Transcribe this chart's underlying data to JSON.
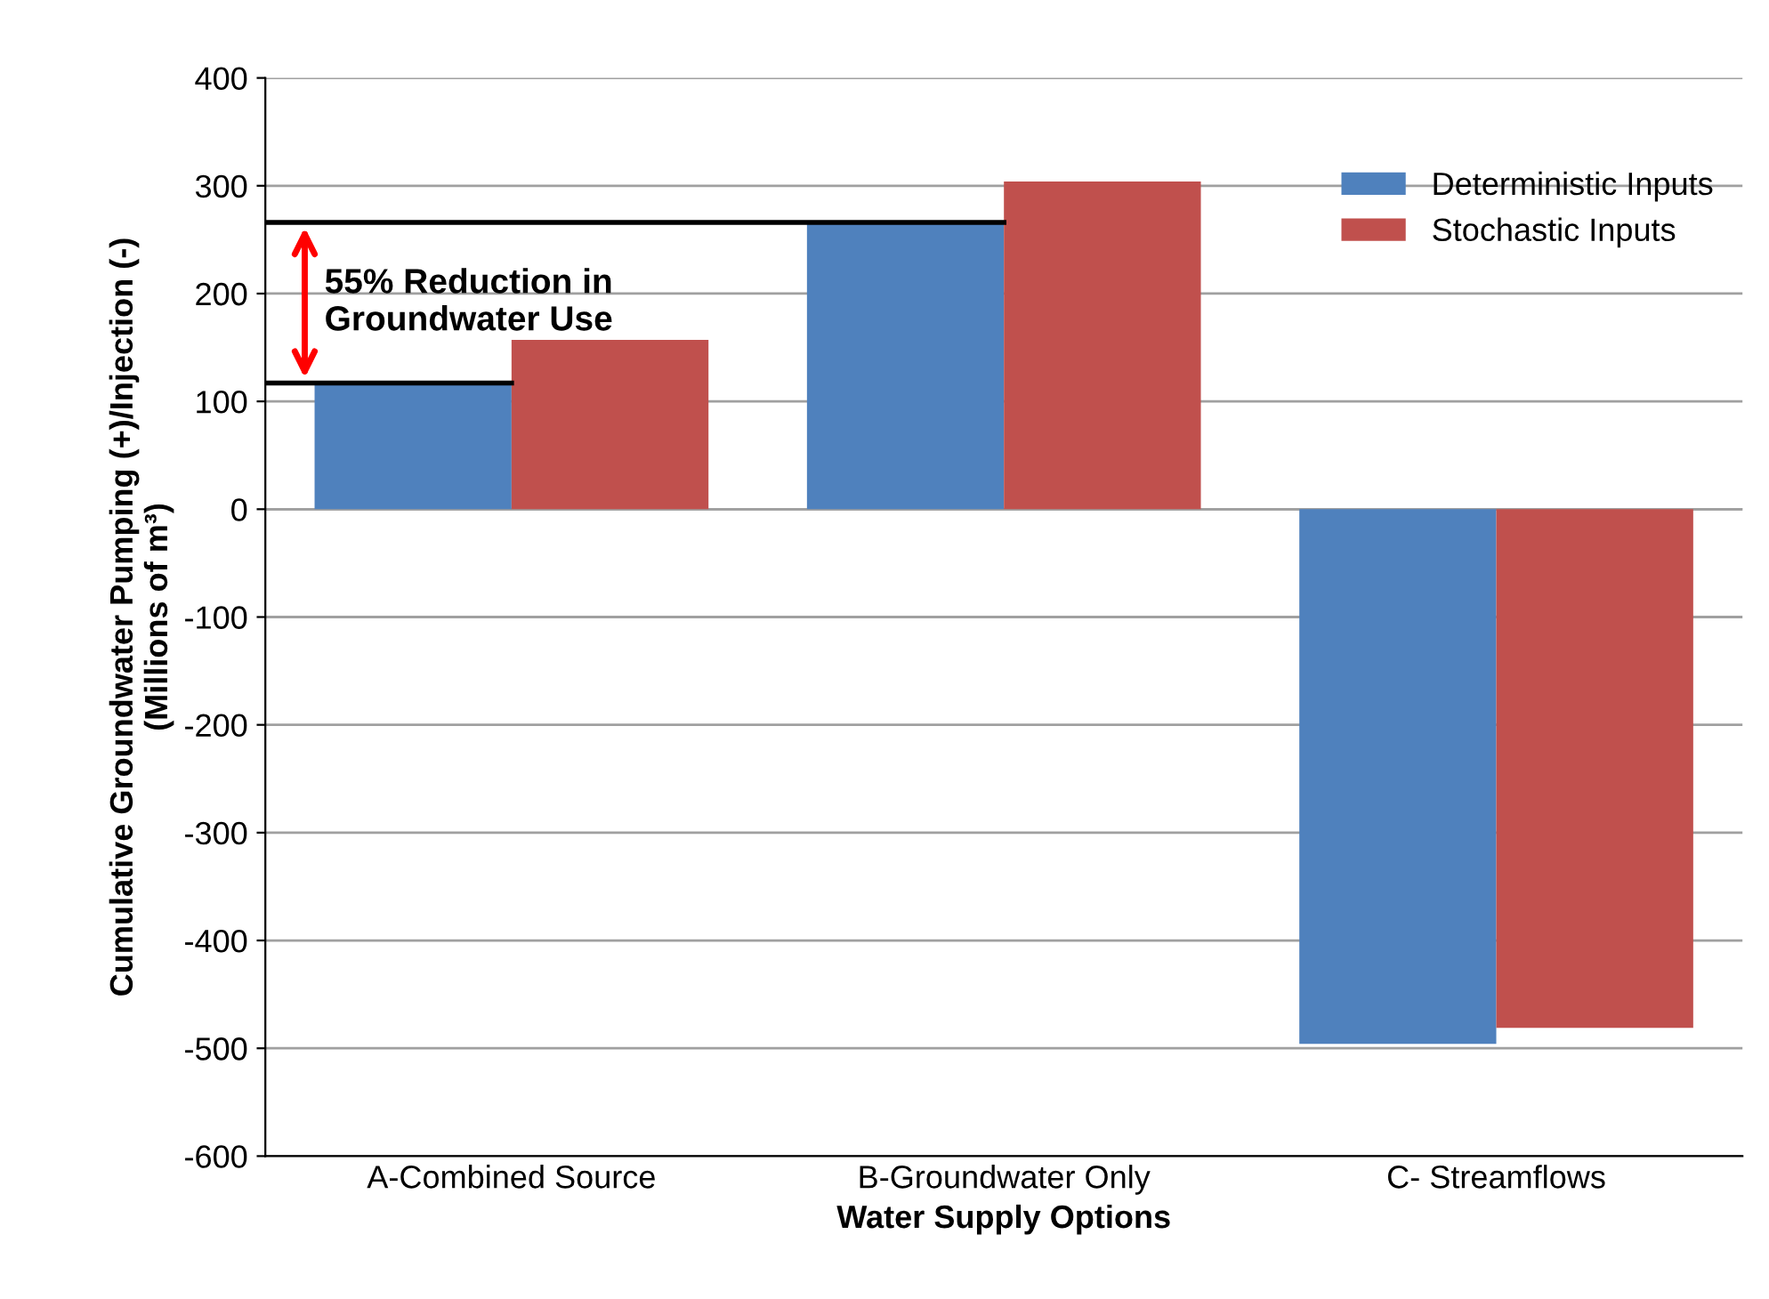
{
  "chart_data": {
    "type": "bar",
    "xlabel": "Water Supply Options",
    "ylabel": "Cumulative Groundwater Pumping (+)/Injection (-)\n(Millions of m³)",
    "categories": [
      "A-Combined Source",
      "B-Groundwater Only",
      "C- Streamflows"
    ],
    "series": [
      {
        "name": "Deterministic Inputs",
        "color": "#4f81bd",
        "values": [
          117,
          266,
          -496
        ]
      },
      {
        "name": "Stochastic Inputs",
        "color": "#c0504d",
        "values": [
          157,
          304,
          -481
        ]
      }
    ],
    "ylim": [
      -600,
      400
    ],
    "yticks": [
      -600,
      -500,
      -400,
      -300,
      -200,
      -100,
      0,
      100,
      200,
      300,
      400
    ],
    "grid": "y",
    "legend": "top right",
    "ref_lines": [
      {
        "axis": "y",
        "value": 266,
        "color": "#000000"
      },
      {
        "axis": "y",
        "value": 117,
        "color": "#000000"
      }
    ],
    "annotations": [
      "55% Reduction in\nGroundwater Use"
    ]
  }
}
